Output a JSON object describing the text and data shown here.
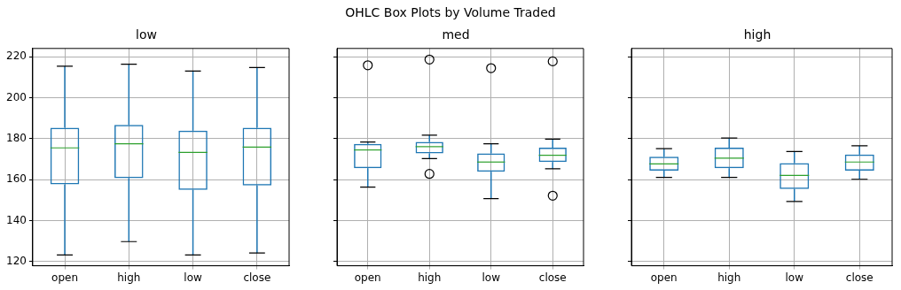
{
  "chart_data": [
    {
      "type": "box",
      "subtitle": "low",
      "categories": [
        "open",
        "high",
        "low",
        "close"
      ],
      "color": "#1f77b4",
      "ylim": [
        118,
        224
      ],
      "yticks": [
        120,
        140,
        160,
        180,
        200,
        220
      ],
      "grid": true,
      "boxes": [
        {
          "low": 123.3,
          "q1": 157.7,
          "median": 175.5,
          "q3": 185.3,
          "high": 215.3
        },
        {
          "low": 129.8,
          "q1": 160.7,
          "median": 177.5,
          "q3": 186.7,
          "high": 216.3
        },
        {
          "low": 123.3,
          "q1": 155,
          "median": 173.3,
          "q3": 183.9,
          "high": 213
        },
        {
          "low": 124.2,
          "q1": 157.2,
          "median": 175.9,
          "q3": 185.3,
          "high": 214.7
        }
      ]
    },
    {
      "type": "box",
      "title": "OHLC Box Plots by Volume Traded",
      "subtitle": "med",
      "categories": [
        "open",
        "high",
        "low",
        "close"
      ],
      "color": "#1f77b4",
      "ylim": [
        118,
        224
      ],
      "yticks": [
        120,
        140,
        160,
        180,
        200,
        220
      ],
      "grid": true,
      "tick_labels": "x",
      "boxes": [
        {
          "low": 156.4,
          "q1": 165.6,
          "median": 174.5,
          "q3": 177.5,
          "high": 178.4,
          "outliers": [
            215.8
          ]
        },
        {
          "low": 170.3,
          "q1": 172.8,
          "median": 176.1,
          "q3": 178.4,
          "high": 181.7,
          "outliers": [
            218.6,
            162.8
          ]
        },
        {
          "low": 150.8,
          "q1": 163.9,
          "median": 168.6,
          "q3": 172.8,
          "high": 177.5,
          "outliers": [
            214.4
          ]
        },
        {
          "low": 165.3,
          "q1": 168.6,
          "median": 171.9,
          "q3": 175.6,
          "high": 179.8,
          "outliers": [
            217.7,
            152.2
          ]
        }
      ]
    },
    {
      "type": "box",
      "subtitle": "high",
      "categories": [
        "open",
        "high",
        "low",
        "close"
      ],
      "color": "#1f77b4",
      "ylim": [
        118,
        224
      ],
      "yticks": [
        120,
        140,
        160,
        180,
        200,
        220
      ],
      "grid": true,
      "tick_labels": "x",
      "boxes": [
        {
          "low": 161.1,
          "q1": 164.4,
          "median": 167.7,
          "q3": 171.2,
          "high": 175.1
        },
        {
          "low": 161.1,
          "q1": 165.6,
          "median": 170.5,
          "q3": 175.6,
          "high": 180.3
        },
        {
          "low": 149.4,
          "q1": 155.5,
          "median": 162.1,
          "q3": 168.1,
          "high": 173.7
        },
        {
          "low": 160.2,
          "q1": 164.4,
          "median": 168.6,
          "q3": 172.3,
          "high": 176.5
        }
      ]
    }
  ]
}
